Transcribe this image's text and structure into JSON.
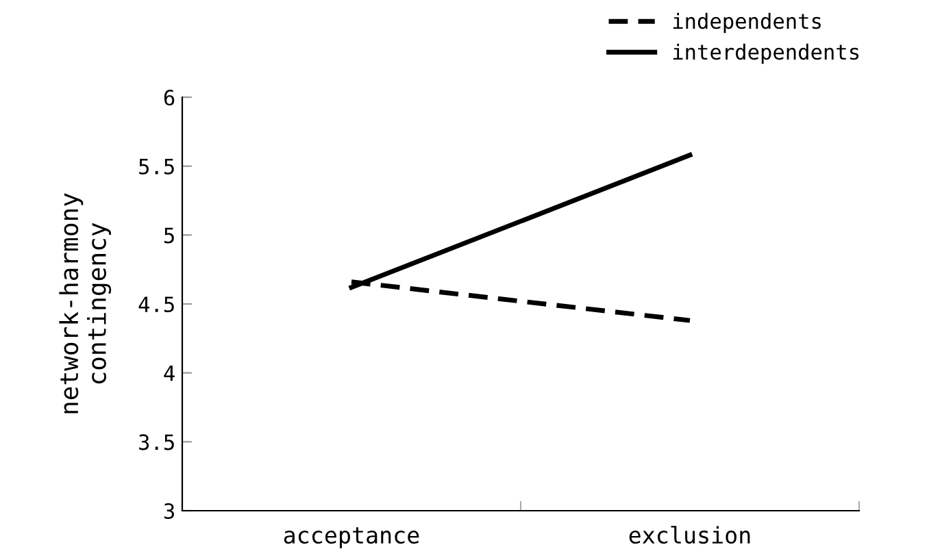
{
  "chart_data": {
    "type": "line",
    "ylabel": "network-harmony\ncontingency",
    "categories": [
      "acceptance",
      "exclusion"
    ],
    "series": [
      {
        "name": "independents",
        "color": "#000000",
        "values": [
          4.66,
          4.38
        ],
        "line_style": "dashed"
      },
      {
        "name": "interdependents",
        "color": "#000000",
        "values": [
          4.62,
          5.58
        ],
        "line_style": "solid"
      }
    ],
    "ylim": [
      3,
      6
    ],
    "yticks": [
      3,
      3.5,
      4,
      4.5,
      5,
      5.5,
      6
    ],
    "grid": false,
    "legend": "top right",
    "marker": "none"
  }
}
